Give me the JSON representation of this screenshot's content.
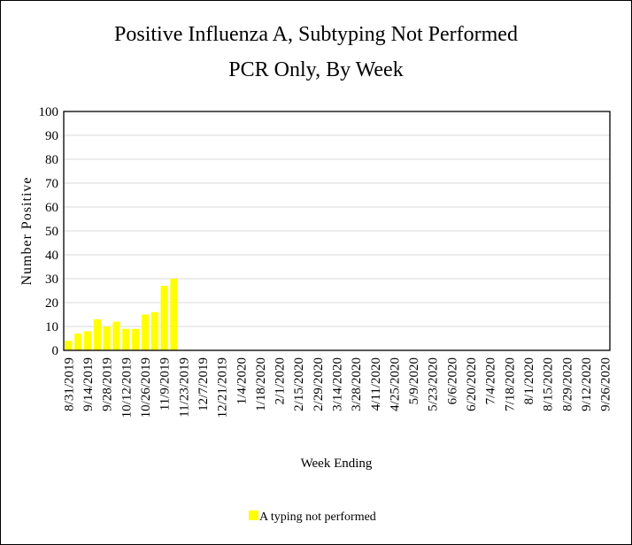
{
  "chart_data": {
    "type": "bar",
    "title": "Positive Influenza A, Subtyping Not Performed",
    "subtitle": "PCR Only, By Week",
    "x_label": "Week Ending",
    "y_label": "Number Positive",
    "categories": [
      "8/31/2019",
      null,
      "9/14/2019",
      null,
      "9/28/2019",
      null,
      "10/12/2019",
      null,
      "10/26/2019",
      null,
      "11/9/2019",
      null,
      "11/23/2019",
      null,
      "12/7/2019",
      null,
      "12/21/2019",
      null,
      "1/4/2020",
      null,
      "1/18/2020",
      null,
      "2/1/2020",
      null,
      "2/15/2020",
      null,
      "2/29/2020",
      null,
      "3/14/2020",
      null,
      "3/28/2020",
      null,
      "4/11/2020",
      null,
      "4/25/2020",
      null,
      "5/9/2020",
      null,
      "5/23/2020",
      null,
      "6/6/2020",
      null,
      "6/20/2020",
      null,
      "7/4/2020",
      null,
      "7/18/2020",
      null,
      "8/1/2020",
      null,
      "8/15/2020",
      null,
      "8/29/2020",
      null,
      "9/12/2020",
      null,
      "9/26/2020"
    ],
    "series": [
      {
        "name": "A typing not performed",
        "color": "#ffff00",
        "values": [
          4,
          7,
          8,
          13,
          10,
          12,
          9,
          9,
          15,
          16,
          27,
          30,
          null,
          null,
          null,
          null,
          null,
          null,
          null,
          null,
          null,
          null,
          null,
          null,
          null,
          null,
          null,
          null,
          null,
          null,
          null,
          null,
          null,
          null,
          null,
          null,
          null,
          null,
          null,
          null,
          null,
          null,
          null,
          null,
          null,
          null,
          null,
          null,
          null,
          null,
          null,
          null,
          null,
          null,
          null,
          null,
          null
        ]
      }
    ],
    "ylim": [
      0,
      100
    ],
    "yticks": [
      0,
      10,
      20,
      30,
      40,
      50,
      60,
      70,
      80,
      90,
      100
    ],
    "grid": true,
    "legend": "bottom"
  }
}
